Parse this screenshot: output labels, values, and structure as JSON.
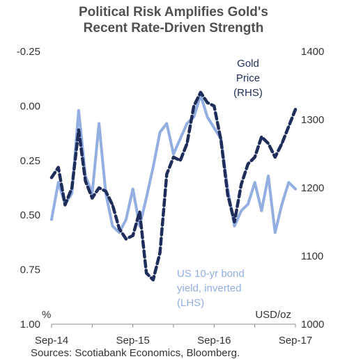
{
  "chart_data": {
    "type": "line",
    "title": "Political Risk Amplifies Gold's\nRecent Rate-Driven Strength",
    "x_ticks": [
      "Sep-14",
      "Sep-15",
      "Sep-16",
      "Sep-17"
    ],
    "x_range": [
      "2014-09",
      "2017-09"
    ],
    "y_left": {
      "ticks": [
        "-0.25",
        "0.00",
        "0.25",
        "0.50",
        "0.75",
        "1.00"
      ],
      "range": [
        -0.25,
        1.0
      ],
      "inverted": true,
      "unit": "%"
    },
    "y_right": {
      "ticks": [
        "1400",
        "1300",
        "1200",
        "1100",
        "1000"
      ],
      "range": [
        1000,
        1400
      ],
      "unit": "USD/oz"
    },
    "series": [
      {
        "name": "US 10-yr bond yield, inverted (LHS)",
        "axis": "left",
        "color": "#93aee0",
        "style": "solid",
        "x": [
          "2014-09",
          "2014-10",
          "2014-11",
          "2014-12",
          "2015-01",
          "2015-02",
          "2015-03",
          "2015-04",
          "2015-05",
          "2015-06",
          "2015-07",
          "2015-08",
          "2015-09",
          "2015-10",
          "2015-11",
          "2015-12",
          "2016-01",
          "2016-02",
          "2016-03",
          "2016-04",
          "2016-05",
          "2016-06",
          "2016-07",
          "2016-08",
          "2016-09",
          "2016-10",
          "2016-11",
          "2016-12",
          "2017-01",
          "2017-02",
          "2017-03",
          "2017-04",
          "2017-05",
          "2017-06",
          "2017-07",
          "2017-08",
          "2017-09"
        ],
        "values": [
          0.52,
          0.35,
          0.45,
          0.4,
          0.02,
          0.32,
          0.4,
          0.08,
          0.4,
          0.55,
          0.58,
          0.52,
          0.38,
          0.55,
          0.42,
          0.28,
          0.12,
          0.08,
          0.22,
          0.15,
          0.08,
          0.05,
          -0.05,
          0.05,
          0.1,
          0.15,
          0.38,
          0.55,
          0.48,
          0.45,
          0.35,
          0.48,
          0.32,
          0.58,
          0.45,
          0.35,
          0.38
        ]
      },
      {
        "name": "Gold Price (RHS)",
        "axis": "right",
        "color": "#1f2d5a",
        "style": "dashed",
        "x": [
          "2014-09",
          "2014-10",
          "2014-11",
          "2014-12",
          "2015-01",
          "2015-02",
          "2015-03",
          "2015-04",
          "2015-05",
          "2015-06",
          "2015-07",
          "2015-08",
          "2015-09",
          "2015-10",
          "2015-11",
          "2015-12",
          "2016-01",
          "2016-02",
          "2016-03",
          "2016-04",
          "2016-05",
          "2016-06",
          "2016-07",
          "2016-08",
          "2016-09",
          "2016-10",
          "2016-11",
          "2016-12",
          "2017-01",
          "2017-02",
          "2017-03",
          "2017-04",
          "2017-05",
          "2017-06",
          "2017-07",
          "2017-08",
          "2017-09"
        ],
        "values": [
          1215,
          1230,
          1175,
          1200,
          1285,
          1210,
          1185,
          1200,
          1195,
          1175,
          1140,
          1125,
          1130,
          1165,
          1075,
          1065,
          1105,
          1220,
          1245,
          1240,
          1265,
          1320,
          1340,
          1325,
          1320,
          1270,
          1190,
          1150,
          1205,
          1235,
          1245,
          1275,
          1265,
          1245,
          1265,
          1290,
          1315
        ]
      }
    ],
    "annotations": {
      "gold": [
        "Gold",
        "Price",
        "(RHS)"
      ],
      "yield": [
        "US 10-yr bond",
        "yield, inverted",
        "(LHS)"
      ],
      "left_unit": "%",
      "right_unit": "USD/oz"
    },
    "source": "Sources: Scotiabank Economics, Bloomberg."
  }
}
